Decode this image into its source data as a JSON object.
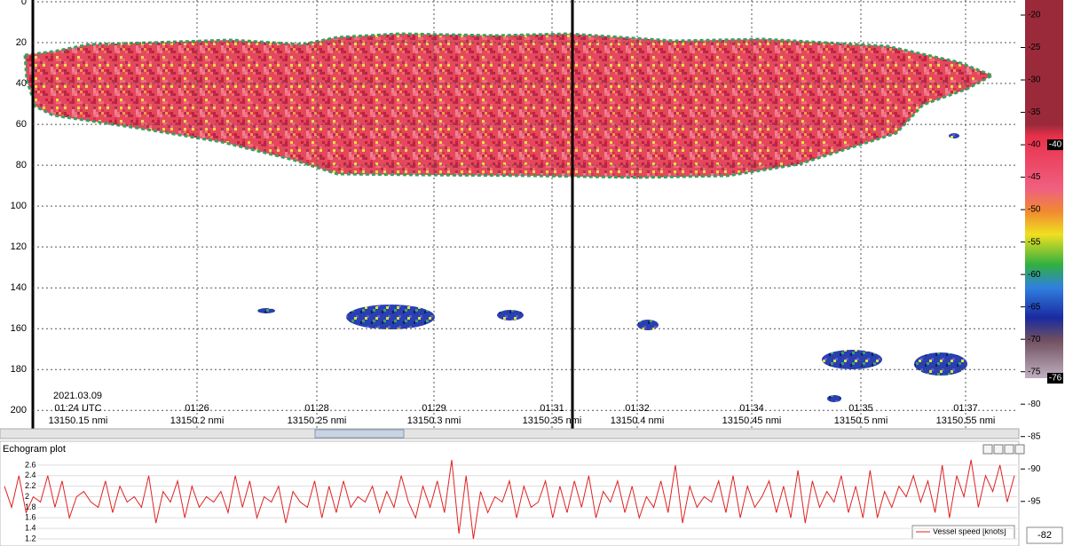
{
  "echogram": {
    "depth_lim": [
      0,
      209
    ],
    "depth_ticks": [
      0,
      20,
      40,
      60,
      80,
      100,
      120,
      140,
      160,
      180,
      200
    ],
    "date": "2021.03.09",
    "time_labels": [
      "01:24 UTC",
      "01:26",
      "01:28",
      "01:29",
      "01:31",
      "01:32",
      "01:34",
      "01:35",
      "01:37"
    ],
    "distance_labels": [
      "13150.15 nmi",
      "13150.2 nmi",
      "13150.25 nmi",
      "13150.3 nmi",
      "13150.35 nmi",
      "13150.4 nmi",
      "13150.45 nmi",
      "13150.5 nmi",
      "13150.55 nmi"
    ]
  },
  "color_scale": {
    "lim": [
      -20,
      -76
    ],
    "ticks": [
      -20,
      -25,
      -30,
      -35,
      -40,
      -45,
      -50,
      -55,
      -60,
      -65,
      -70,
      -75,
      -80,
      -85,
      -90,
      -95
    ],
    "markers": [
      -40,
      -76
    ]
  },
  "plot": {
    "title": "Echogram plot",
    "ylim": [
      1.1,
      2.75
    ],
    "yticks": [
      1.2,
      1.4,
      1.6,
      1.8,
      2,
      2.2,
      2.4,
      2.6
    ],
    "series": [
      {
        "name": "Vessel speed [knots]",
        "color": "#e02020",
        "values": [
          2.2,
          1.8,
          2.4,
          1.7,
          2.0,
          1.9,
          2.4,
          1.8,
          2.3,
          1.6,
          2.0,
          2.1,
          1.9,
          1.8,
          2.3,
          1.7,
          2.2,
          1.9,
          2.0,
          1.8,
          2.4,
          1.5,
          2.1,
          1.9,
          2.3,
          1.6,
          2.2,
          1.8,
          2.0,
          1.9,
          2.1,
          1.7,
          2.4,
          1.8,
          2.3,
          1.6,
          2.0,
          1.9,
          2.2,
          1.5,
          2.1,
          1.9,
          1.8,
          2.3,
          1.6,
          2.2,
          1.7,
          2.3,
          1.8,
          2.0,
          1.9,
          2.2,
          1.7,
          2.1,
          1.8,
          2.4,
          1.9,
          1.6,
          2.2,
          1.8,
          2.3,
          1.7,
          2.7,
          1.3,
          2.4,
          1.2,
          2.1,
          1.7,
          2.0,
          1.9,
          2.3,
          1.6,
          2.2,
          1.8,
          1.9,
          2.3,
          1.6,
          2.2,
          1.7,
          2.3,
          1.8,
          2.4,
          1.6,
          2.1,
          1.9,
          2.3,
          1.7,
          2.2,
          1.6,
          2.0,
          1.8,
          2.3,
          1.7,
          2.6,
          1.5,
          2.2,
          1.8,
          2.0,
          1.9,
          2.3,
          1.7,
          2.4,
          1.6,
          2.2,
          1.8,
          2.0,
          2.3,
          1.7,
          2.2,
          1.6,
          2.5,
          1.5,
          2.3,
          1.8,
          2.1,
          1.9,
          2.4,
          1.7,
          2.2,
          1.6,
          2.5,
          1.6,
          2.1,
          1.8,
          2.2,
          2.0,
          2.4,
          1.9,
          2.3,
          1.7,
          2.6,
          1.6,
          2.4,
          2.0,
          2.7,
          1.8,
          2.4,
          2.1,
          2.6,
          1.9,
          2.4
        ]
      }
    ]
  },
  "status_value": -82
}
